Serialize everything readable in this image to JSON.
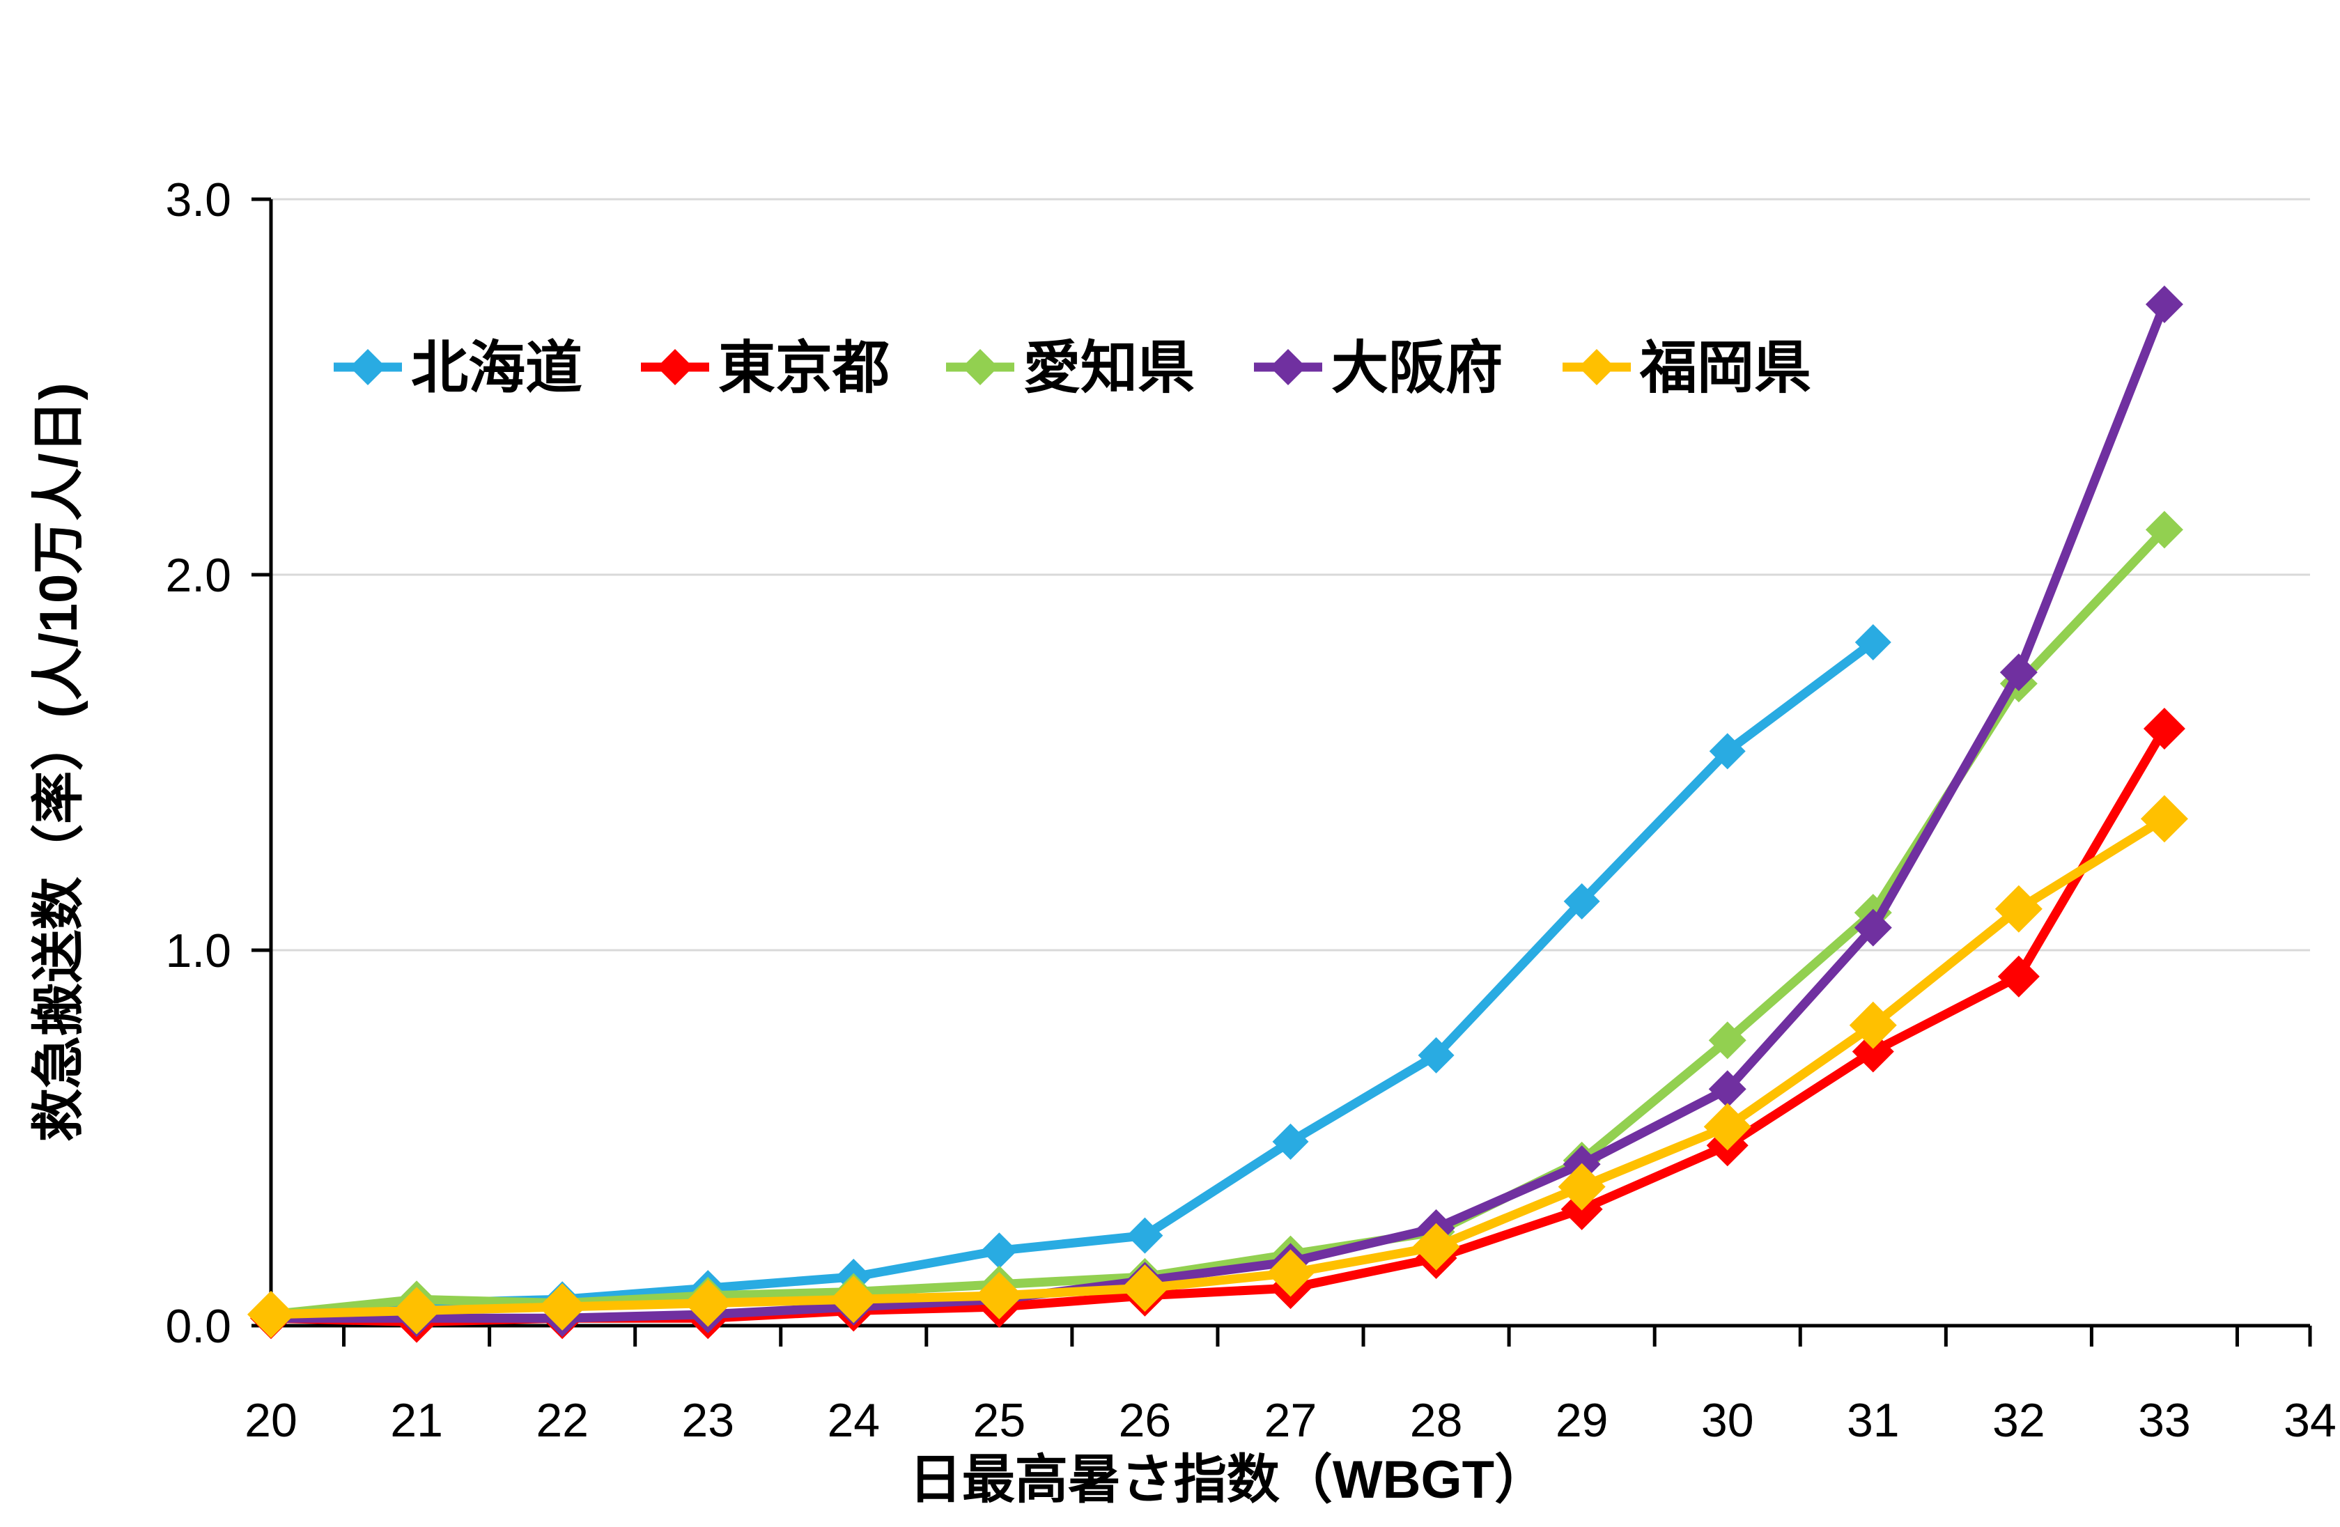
{
  "chart_data": {
    "type": "line",
    "title": "",
    "xlabel": "日最高暑さ指数（WBGT）",
    "ylabel": "救急搬送数（率）(人/10万人/日)",
    "x_tick_labels": [
      "20",
      "21",
      "22",
      "23",
      "24",
      "25",
      "26",
      "27",
      "28",
      "29",
      "30",
      "31",
      "32",
      "33",
      "34"
    ],
    "y_tick_labels": [
      "0.0",
      "1.0",
      "2.0",
      "3.0"
    ],
    "xlim": [
      20,
      34
    ],
    "ylim": [
      0.0,
      3.0
    ],
    "grid": "horizontal-gridlines-on",
    "legend_position": "top-inside-horizontal",
    "marker": "diamond",
    "colors": {
      "background": "#FFFFFF",
      "gridline": "#D9D9D9",
      "axis": "#000000",
      "text": "#000000"
    },
    "series": [
      {
        "key": "hokkaido",
        "name": "北海道",
        "color": "#29ABE2",
        "marker_half": 26,
        "x": [
          20,
          21,
          22,
          23,
          24,
          25,
          26,
          27,
          28,
          29,
          30,
          31
        ],
        "values": [
          0.03,
          0.06,
          0.07,
          0.1,
          0.13,
          0.2,
          0.24,
          0.49,
          0.72,
          1.13,
          1.53,
          1.82
        ]
      },
      {
        "key": "tokyo",
        "name": "東京都",
        "color": "#FF0000",
        "marker_half": 30,
        "x": [
          20,
          21,
          22,
          23,
          24,
          25,
          26,
          27,
          28,
          29,
          30,
          31,
          32,
          33
        ],
        "values": [
          0.02,
          0.01,
          0.02,
          0.02,
          0.04,
          0.05,
          0.08,
          0.1,
          0.18,
          0.31,
          0.48,
          0.73,
          0.93,
          1.59
        ]
      },
      {
        "key": "aichi",
        "name": "愛知県",
        "color": "#92D050",
        "marker_half": 27,
        "x": [
          20,
          21,
          22,
          23,
          24,
          25,
          26,
          27,
          28,
          29,
          30,
          31,
          32,
          33
        ],
        "values": [
          0.03,
          0.07,
          0.06,
          0.08,
          0.09,
          0.11,
          0.13,
          0.19,
          0.25,
          0.44,
          0.76,
          1.1,
          1.71,
          2.12
        ]
      },
      {
        "key": "osaka",
        "name": "大阪府",
        "color": "#7030A0",
        "marker_half": 27,
        "x": [
          20,
          21,
          22,
          23,
          24,
          25,
          26,
          27,
          28,
          29,
          30,
          31,
          32,
          33
        ],
        "values": [
          0.02,
          0.02,
          0.02,
          0.03,
          0.05,
          0.07,
          0.12,
          0.17,
          0.26,
          0.43,
          0.63,
          1.06,
          1.74,
          2.72
        ]
      },
      {
        "key": "fukuoka",
        "name": "福岡県",
        "color": "#FFC000",
        "marker_half": 34,
        "x": [
          20,
          21,
          22,
          23,
          24,
          25,
          26,
          27,
          28,
          29,
          30,
          31,
          32,
          33
        ],
        "values": [
          0.03,
          0.04,
          0.05,
          0.06,
          0.07,
          0.08,
          0.1,
          0.14,
          0.21,
          0.37,
          0.53,
          0.8,
          1.11,
          1.35
        ]
      }
    ]
  }
}
